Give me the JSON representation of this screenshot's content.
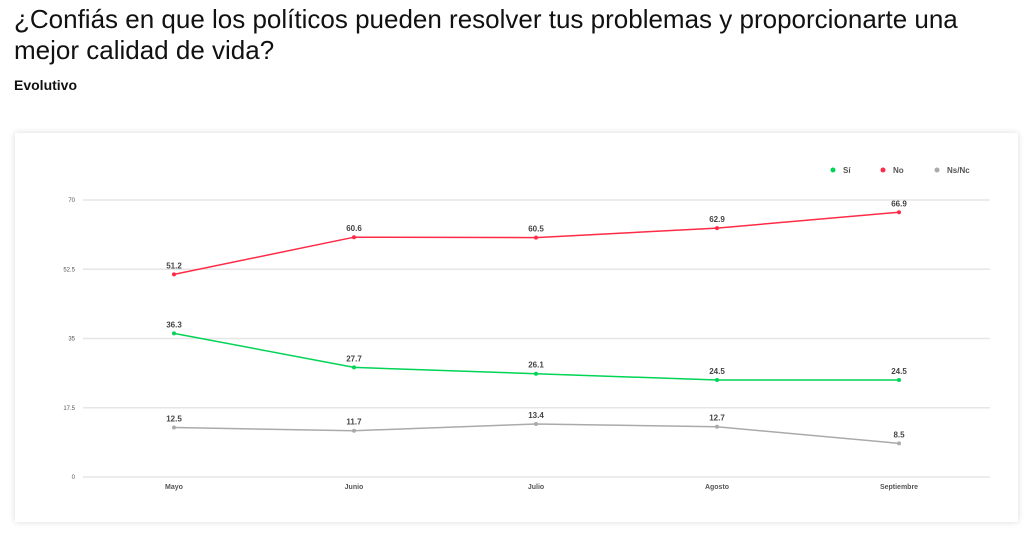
{
  "header": {
    "title": "¿Confiás en que los políticos pueden resolver tus problemas y proporcionarte una mejor calidad de vida?",
    "subtitle": "Evolutivo"
  },
  "chart_data": {
    "type": "line",
    "categories": [
      "Mayo",
      "Junio",
      "Julio",
      "Agosto",
      "Septiembre"
    ],
    "series": [
      {
        "name": "Sí",
        "color": "#00d455",
        "values": [
          36.3,
          27.7,
          26.1,
          24.5,
          24.5
        ]
      },
      {
        "name": "No",
        "color": "#ff2a45",
        "values": [
          51.2,
          60.6,
          60.5,
          62.9,
          66.9
        ]
      },
      {
        "name": "Ns/Nc",
        "color": "#aaaaaa",
        "values": [
          12.5,
          11.7,
          13.4,
          12.7,
          8.5
        ]
      }
    ],
    "yticks": [
      0,
      17.5,
      35,
      52.5,
      70
    ],
    "ylim": [
      0,
      70
    ],
    "grid": true,
    "legend": "top-right"
  }
}
